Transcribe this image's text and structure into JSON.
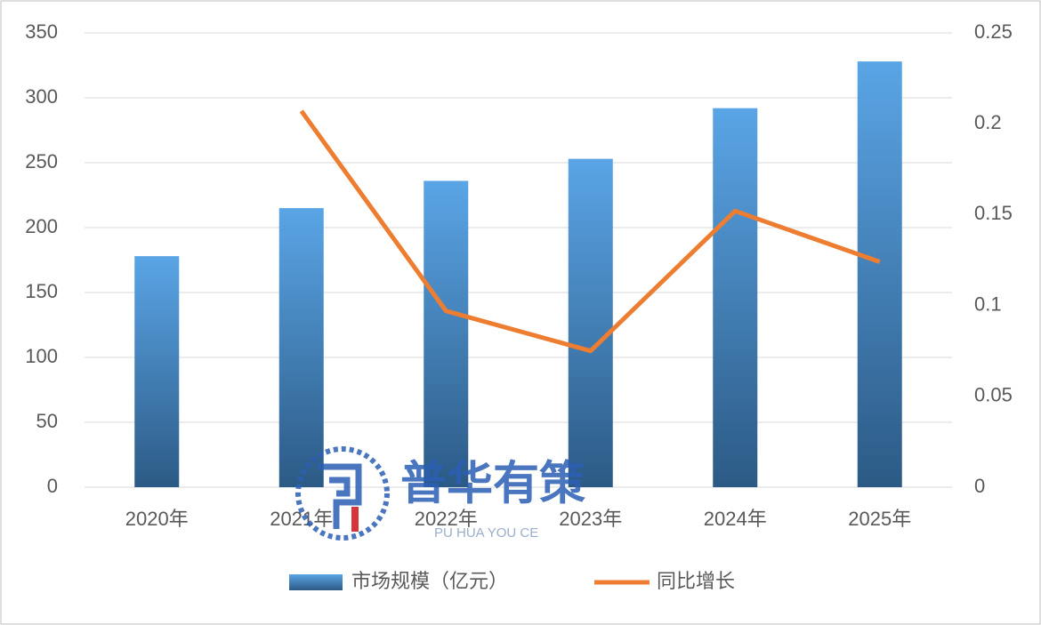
{
  "chart_data": {
    "type": "bar-line",
    "categories": [
      "2020年",
      "2021年",
      "2022年",
      "2023年",
      "2024年",
      "2025年"
    ],
    "series": [
      {
        "name": "市场规模（亿元）",
        "type": "bar",
        "color": "#4a8fd0",
        "values": [
          178,
          215,
          236,
          253,
          292,
          328
        ]
      },
      {
        "name": "同比增长",
        "type": "line",
        "axis": "y2",
        "color": "#ed7d31",
        "values": [
          null,
          0.207,
          0.097,
          0.075,
          0.152,
          0.124
        ]
      }
    ],
    "ylim": [
      0,
      350
    ],
    "yticks": [
      0,
      50,
      100,
      150,
      200,
      250,
      300,
      350
    ],
    "y2lim": [
      0,
      0.25
    ],
    "y2ticks": [
      0,
      0.05,
      0.1,
      0.15,
      0.2,
      0.25
    ],
    "grid": true,
    "legend": "bottom"
  },
  "watermark": {
    "text": "普华有策",
    "subtext": "PU HUA YOU CE"
  }
}
